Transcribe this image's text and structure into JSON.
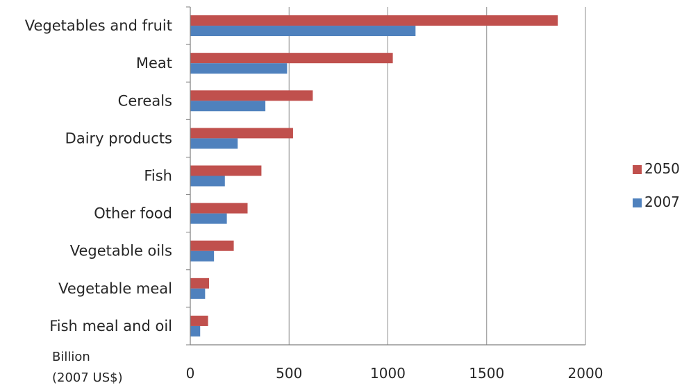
{
  "chart_data": {
    "type": "bar",
    "orientation": "horizontal",
    "categories": [
      "Vegetables and fruit",
      "Meat",
      "Cereals",
      "Dairy products",
      "Fish",
      "Other food",
      "Vegetable oils",
      "Vegetable meal",
      "Fish meal and oil"
    ],
    "series": [
      {
        "name": "2050",
        "color": "#c0504d",
        "values": [
          1860,
          1025,
          620,
          520,
          360,
          290,
          220,
          95,
          90
        ]
      },
      {
        "name": "2007",
        "color": "#4f81bd",
        "values": [
          1140,
          490,
          380,
          240,
          175,
          185,
          120,
          75,
          50
        ]
      }
    ],
    "xlim": [
      0,
      2000
    ],
    "xticks": [
      "0",
      "500",
      "1000",
      "1500",
      "2000"
    ],
    "xlabel_lines": [
      "Billion",
      "(2007 US$)"
    ],
    "grid": "vertical",
    "legend_position": "right"
  }
}
